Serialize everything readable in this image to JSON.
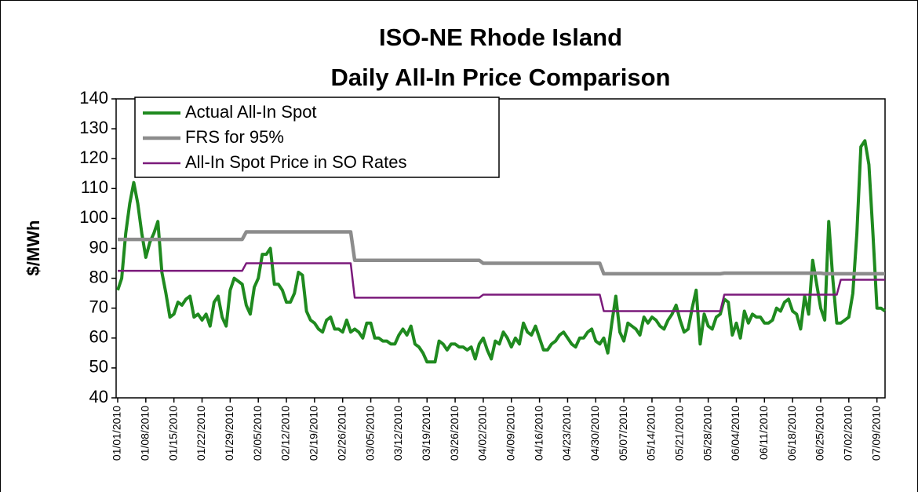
{
  "chart_data": {
    "type": "line",
    "title": [
      "ISO-NE Rhode Island",
      "Daily All-In Price Comparison"
    ],
    "y_label": "$/MWh",
    "legend": "top-left",
    "grid": false,
    "ylim": [
      40,
      140
    ],
    "yticks": [
      40,
      50,
      60,
      70,
      80,
      90,
      100,
      110,
      120,
      130,
      140
    ],
    "categories": [
      "01/01/2010",
      null,
      null,
      null,
      null,
      null,
      null,
      "01/08/2010",
      null,
      null,
      null,
      null,
      null,
      null,
      "01/15/2010",
      null,
      null,
      null,
      null,
      null,
      null,
      "01/22/2010",
      null,
      null,
      null,
      null,
      null,
      null,
      "01/29/2010",
      null,
      null,
      null,
      null,
      null,
      null,
      "02/05/2010",
      null,
      null,
      null,
      null,
      null,
      null,
      "02/12/2010",
      null,
      null,
      null,
      null,
      null,
      null,
      "02/19/2010",
      null,
      null,
      null,
      null,
      null,
      null,
      "02/26/2010",
      null,
      null,
      null,
      null,
      null,
      null,
      "03/05/2010",
      null,
      null,
      null,
      null,
      null,
      null,
      "03/12/2010",
      null,
      null,
      null,
      null,
      null,
      null,
      "03/19/2010",
      null,
      null,
      null,
      null,
      null,
      null,
      "03/26/2010",
      null,
      null,
      null,
      null,
      null,
      null,
      "04/02/2010",
      null,
      null,
      null,
      null,
      null,
      null,
      "04/09/2010",
      null,
      null,
      null,
      null,
      null,
      null,
      "04/16/2010",
      null,
      null,
      null,
      null,
      null,
      null,
      "04/23/2010",
      null,
      null,
      null,
      null,
      null,
      null,
      "04/30/2010",
      null,
      null,
      null,
      null,
      null,
      null,
      "05/07/2010",
      null,
      null,
      null,
      null,
      null,
      null,
      "05/14/2010",
      null,
      null,
      null,
      null,
      null,
      null,
      "05/21/2010",
      null,
      null,
      null,
      null,
      null,
      null,
      "05/28/2010",
      null,
      null,
      null,
      null,
      null,
      null,
      "06/04/2010",
      null,
      null,
      null,
      null,
      null,
      null,
      "06/11/2010",
      null,
      null,
      null,
      null,
      null,
      null,
      "06/18/2010",
      null,
      null,
      null,
      null,
      null,
      null,
      "06/25/2010",
      null,
      null,
      null,
      null,
      null,
      null,
      "07/02/2010",
      null,
      null,
      null,
      null,
      null,
      null,
      "07/09/2010",
      null,
      null
    ],
    "series": [
      {
        "name": "Actual All-In Spot",
        "color": "#1f8a1f",
        "width": 4,
        "values": [
          76,
          80,
          95,
          105,
          112,
          105,
          95,
          87,
          92,
          95,
          99,
          82,
          75,
          67,
          68,
          72,
          71,
          73,
          74,
          67,
          68,
          66,
          68,
          64,
          72,
          74,
          67,
          64,
          76,
          80,
          79,
          78,
          71,
          68,
          77,
          80,
          88,
          88,
          90,
          78,
          78,
          76,
          72,
          72,
          75,
          82,
          81,
          69,
          66,
          65,
          63,
          62,
          66,
          67,
          63,
          63,
          62,
          66,
          62,
          63,
          62,
          60,
          65,
          65,
          60,
          60,
          59,
          59,
          58,
          58,
          61,
          63,
          61,
          64,
          58,
          57,
          55,
          52,
          52,
          52,
          59,
          58,
          56,
          58,
          58,
          57,
          57,
          56,
          57,
          53,
          58,
          60,
          56,
          53,
          59,
          58,
          62,
          60,
          57,
          60,
          58,
          65,
          62,
          61,
          64,
          60,
          56,
          56,
          58,
          59,
          61,
          62,
          60,
          58,
          57,
          60,
          60,
          62,
          63,
          59,
          58,
          60,
          55,
          65,
          74,
          62,
          59,
          65,
          64,
          63,
          61,
          67,
          65,
          67,
          66,
          64,
          63,
          66,
          68,
          71,
          66,
          62,
          63,
          70,
          76,
          58,
          68,
          64,
          63,
          67,
          68,
          73,
          72,
          61,
          65,
          60,
          69,
          65,
          68,
          67,
          67,
          65,
          65,
          66,
          70,
          69,
          72,
          73,
          69,
          68,
          63,
          74,
          68,
          86,
          78,
          70,
          66,
          99,
          80,
          65,
          65,
          66,
          67,
          75,
          95,
          124,
          126,
          118,
          95,
          70,
          70,
          69
        ]
      },
      {
        "name": "FRS for 95%",
        "color": "#8c8c8c",
        "width": 4.5,
        "values": [
          93,
          93,
          93,
          93,
          93,
          93,
          93,
          93,
          93,
          93,
          93,
          93,
          93,
          93,
          93,
          93,
          93,
          93,
          93,
          93,
          93,
          93,
          93,
          93,
          93,
          93,
          93,
          93,
          93,
          93,
          93,
          93,
          95.5,
          95.5,
          95.5,
          95.5,
          95.5,
          95.5,
          95.5,
          95.5,
          95.5,
          95.5,
          95.5,
          95.5,
          95.5,
          95.5,
          95.5,
          95.5,
          95.5,
          95.5,
          95.5,
          95.5,
          95.5,
          95.5,
          95.5,
          95.5,
          95.5,
          95.5,
          95.5,
          86,
          86,
          86,
          86,
          86,
          86,
          86,
          86,
          86,
          86,
          86,
          86,
          86,
          86,
          86,
          86,
          86,
          86,
          86,
          86,
          86,
          86,
          86,
          86,
          86,
          86,
          86,
          86,
          86,
          86,
          86,
          86,
          85,
          85,
          85,
          85,
          85,
          85,
          85,
          85,
          85,
          85,
          85,
          85,
          85,
          85,
          85,
          85,
          85,
          85,
          85,
          85,
          85,
          85,
          85,
          85,
          85,
          85,
          85,
          85,
          85,
          85,
          81.5,
          81.5,
          81.5,
          81.5,
          81.5,
          81.5,
          81.5,
          81.5,
          81.5,
          81.5,
          81.5,
          81.5,
          81.5,
          81.5,
          81.5,
          81.5,
          81.5,
          81.5,
          81.5,
          81.5,
          81.5,
          81.5,
          81.5,
          81.5,
          81.5,
          81.5,
          81.5,
          81.5,
          81.5,
          81.5,
          81.7,
          81.7,
          81.7,
          81.7,
          81.7,
          81.7,
          81.7,
          81.7,
          81.7,
          81.7,
          81.7,
          81.7,
          81.7,
          81.7,
          81.7,
          81.7,
          81.7,
          81.7,
          81.7,
          81.7,
          81.7,
          81.7,
          81.7,
          81.7,
          81.7,
          81.5,
          81.5,
          81.5,
          81.5,
          81.5,
          81.5,
          81.5,
          81.5,
          81.5,
          81.5,
          81.5,
          81.5,
          81.5,
          81.5,
          81.5,
          81.5
        ]
      },
      {
        "name": "All-In Spot Price in SO Rates",
        "color": "#7b1a7b",
        "width": 2.5,
        "values": [
          82.5,
          82.5,
          82.5,
          82.5,
          82.5,
          82.5,
          82.5,
          82.5,
          82.5,
          82.5,
          82.5,
          82.5,
          82.5,
          82.5,
          82.5,
          82.5,
          82.5,
          82.5,
          82.5,
          82.5,
          82.5,
          82.5,
          82.5,
          82.5,
          82.5,
          82.5,
          82.5,
          82.5,
          82.5,
          82.5,
          82.5,
          82.5,
          85,
          85,
          85,
          85,
          85,
          85,
          85,
          85,
          85,
          85,
          85,
          85,
          85,
          85,
          85,
          85,
          85,
          85,
          85,
          85,
          85,
          85,
          85,
          85,
          85,
          85,
          85,
          73.5,
          73.5,
          73.5,
          73.5,
          73.5,
          73.5,
          73.5,
          73.5,
          73.5,
          73.5,
          73.5,
          73.5,
          73.5,
          73.5,
          73.5,
          73.5,
          73.5,
          73.5,
          73.5,
          73.5,
          73.5,
          73.5,
          73.5,
          73.5,
          73.5,
          73.5,
          73.5,
          73.5,
          73.5,
          73.5,
          73.5,
          73.5,
          74.5,
          74.5,
          74.5,
          74.5,
          74.5,
          74.5,
          74.5,
          74.5,
          74.5,
          74.5,
          74.5,
          74.5,
          74.5,
          74.5,
          74.5,
          74.5,
          74.5,
          74.5,
          74.5,
          74.5,
          74.5,
          74.5,
          74.5,
          74.5,
          74.5,
          74.5,
          74.5,
          74.5,
          74.5,
          74.5,
          69,
          69,
          69,
          69,
          69,
          69,
          69,
          69,
          69,
          69,
          69,
          69,
          69,
          69,
          69,
          69,
          69,
          69,
          69,
          69,
          69,
          69,
          69,
          69,
          69,
          69,
          69,
          69,
          69,
          69,
          74.5,
          74.5,
          74.5,
          74.5,
          74.5,
          74.5,
          74.5,
          74.5,
          74.5,
          74.5,
          74.5,
          74.5,
          74.5,
          74.5,
          74.5,
          74.5,
          74.5,
          74.5,
          74.5,
          74.5,
          74.5,
          74.5,
          74.5,
          74.5,
          74.5,
          74.5,
          74.5,
          74.5,
          74.5,
          79.5,
          79.5,
          79.5,
          79.5,
          79.5,
          79.5,
          79.5,
          79.5,
          79.5,
          79.5,
          79.5,
          79.5
        ]
      }
    ]
  }
}
